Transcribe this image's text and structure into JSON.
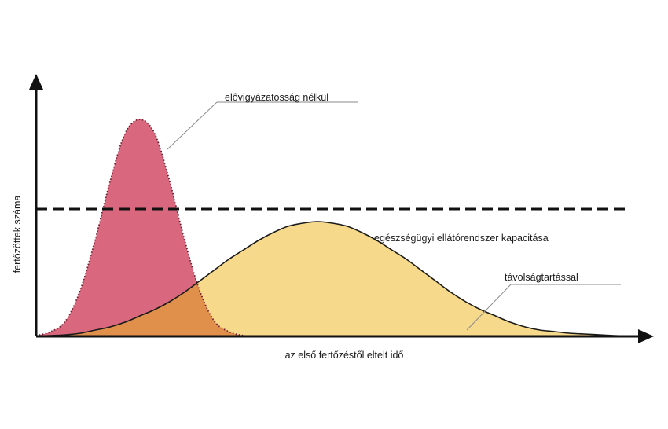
{
  "chart_data": {
    "type": "area",
    "xlabel": "az első fertőzéstől eltelt idő",
    "ylabel": "fertőzöttek száma",
    "x": [
      0,
      1,
      2,
      3,
      4,
      5,
      6,
      7,
      8,
      9,
      10,
      11,
      12,
      13,
      14,
      15,
      16,
      17,
      18,
      19,
      20,
      21,
      22,
      23,
      24,
      25,
      26,
      27,
      28,
      29,
      30,
      31,
      32,
      33,
      34,
      35,
      36,
      37,
      38,
      39,
      40
    ],
    "series": [
      {
        "name": "elővigyázatosság nélkül",
        "color": "#d9677e",
        "values": [
          0.5,
          3,
          10,
          30,
          62,
          99,
          129,
          138,
          129,
          99,
          62,
          30,
          10,
          3,
          0.5,
          0,
          0,
          0,
          0,
          0,
          0,
          0,
          0,
          0,
          0,
          0,
          0,
          0,
          0,
          0,
          0,
          0,
          0,
          0,
          0,
          0,
          0,
          0,
          0,
          0,
          0
        ]
      },
      {
        "name": "távolságtartással",
        "color": "#f6d98a",
        "values": [
          0,
          0.5,
          1,
          2,
          4,
          6,
          9,
          13,
          17,
          22,
          28,
          35,
          42,
          49,
          55,
          61,
          66,
          70,
          72,
          73,
          72,
          70,
          66,
          61,
          55,
          49,
          42,
          35,
          28,
          22,
          17,
          13,
          9,
          6,
          4,
          3,
          2,
          1.5,
          1,
          0.5,
          0
        ]
      }
    ],
    "overlap_color": "#e0904a",
    "capacity_line": {
      "label": "egészségügyi ellátórendszer kapacitása",
      "value": 81
    },
    "ylim": [
      0,
      160
    ],
    "xlim": [
      0,
      40
    ],
    "grid": false,
    "legend": "annotations"
  }
}
